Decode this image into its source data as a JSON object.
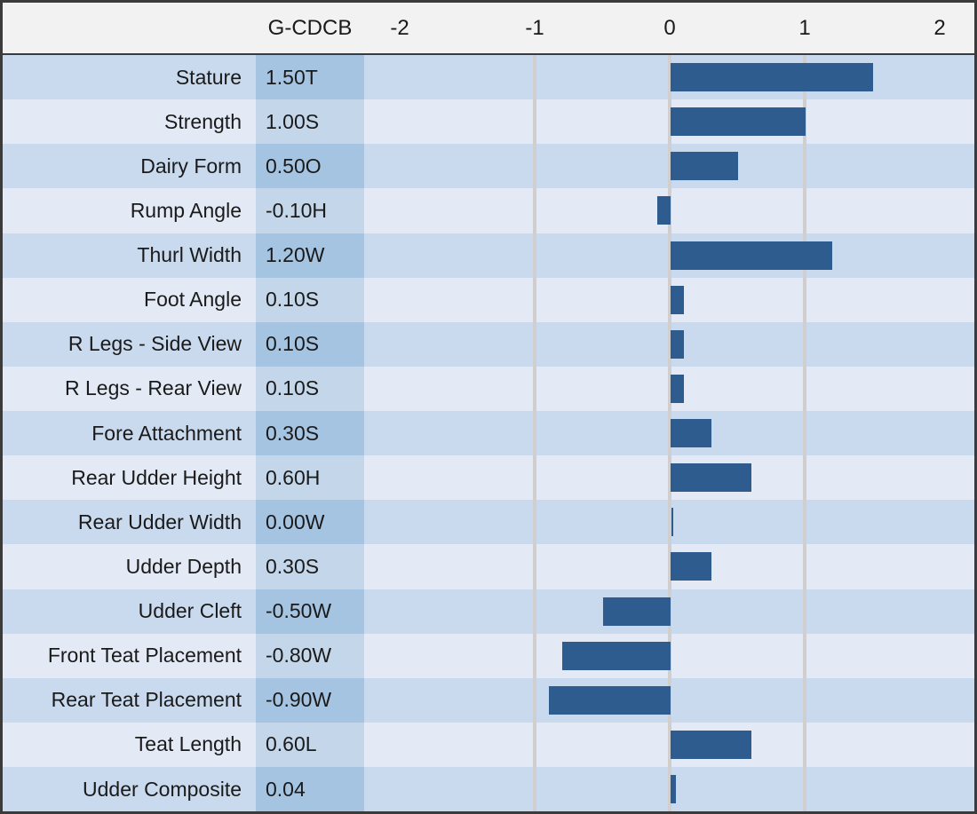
{
  "header": {
    "value_column_label": "G-CDCB",
    "axis_tick_labels": [
      "-2",
      "-1",
      "0",
      "1",
      "2"
    ]
  },
  "chart_data": {
    "type": "bar",
    "orientation": "horizontal",
    "title": "",
    "xlabel": "",
    "ylabel": "",
    "categories": [
      "Stature",
      "Strength",
      "Dairy Form",
      "Rump Angle",
      "Thurl Width",
      "Foot Angle",
      "R Legs - Side View",
      "R Legs - Rear View",
      "Fore Attachment",
      "Rear Udder Height",
      "Rear Udder Width",
      "Udder Depth",
      "Udder Cleft",
      "Front Teat Placement",
      "Rear Teat Placement",
      "Teat Length",
      "Udder Composite"
    ],
    "values": [
      1.5,
      1.0,
      0.5,
      -0.1,
      1.2,
      0.1,
      0.1,
      0.1,
      0.3,
      0.6,
      0.0,
      0.3,
      -0.5,
      -0.8,
      -0.9,
      0.6,
      0.04
    ],
    "value_labels": [
      "1.50T",
      "1.00S",
      "0.50O",
      "-0.10H",
      "1.20W",
      "0.10S",
      "0.10S",
      "0.10S",
      "0.30S",
      "0.60H",
      "0.00W",
      "0.30S",
      "-0.50W",
      "-0.80W",
      "-0.90W",
      "0.60L",
      "0.04"
    ],
    "x_ticks": [
      -2,
      -1,
      0,
      1,
      2
    ],
    "gridline_ticks": [
      -1,
      0,
      1
    ],
    "xlim": [
      -2.26,
      2.26
    ],
    "grid": "vertical-only",
    "legend": "none",
    "colors": {
      "bar": "#2e5c8e",
      "row_dark": "#c9daee",
      "row_dark_value_cell": "#a5c4e2",
      "row_light": "#e3eaf5",
      "row_light_value_cell": "#c3d6ea",
      "gridline": "#d0cece",
      "header_background": "#f2f2f2",
      "border": "#3b3b3b",
      "text": "#1a1a1a"
    }
  }
}
